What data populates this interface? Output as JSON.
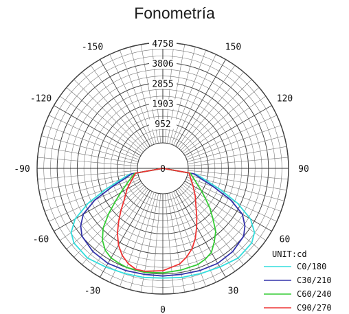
{
  "title": "Fonometría",
  "chart_data": {
    "type": "polar",
    "title": "Fonometría",
    "unit_label": "UNIT:cd",
    "radial_ticks": [
      952,
      1903,
      2855,
      3806,
      4758
    ],
    "center_label": "0",
    "radial_max": 4758,
    "angle_labels": [
      {
        "text": "-150",
        "angle": -150
      },
      {
        "text": "150",
        "angle": 150
      },
      {
        "text": "-120",
        "angle": -120
      },
      {
        "text": "120",
        "angle": 120
      },
      {
        "text": "-90",
        "angle": -90
      },
      {
        "text": "90",
        "angle": 90
      },
      {
        "text": "-60",
        "angle": -60
      },
      {
        "text": "60",
        "angle": 60
      },
      {
        "text": "-30",
        "angle": -30
      },
      {
        "text": "30",
        "angle": 30
      },
      {
        "text": "0",
        "angle": 0
      }
    ],
    "grid": true,
    "legend_position": "bottom-right",
    "series": [
      {
        "name": "C0/180",
        "color": "#33dddd",
        "points": [
          [
            -90,
            0
          ],
          [
            -80,
            400
          ],
          [
            -75,
            850
          ],
          [
            -70,
            1650
          ],
          [
            -65,
            2700
          ],
          [
            -60,
            3600
          ],
          [
            -55,
            4100
          ],
          [
            -50,
            4300
          ],
          [
            -40,
            4350
          ],
          [
            -30,
            4200
          ],
          [
            -20,
            4100
          ],
          [
            -10,
            4050
          ],
          [
            0,
            4000
          ],
          [
            10,
            4050
          ],
          [
            20,
            4100
          ],
          [
            30,
            4200
          ],
          [
            40,
            4350
          ],
          [
            50,
            4300
          ],
          [
            55,
            4100
          ],
          [
            60,
            3600
          ],
          [
            65,
            2700
          ],
          [
            70,
            1650
          ],
          [
            75,
            850
          ],
          [
            80,
            400
          ],
          [
            90,
            0
          ]
        ]
      },
      {
        "name": "C30/210",
        "color": "#3333aa",
        "points": [
          [
            -90,
            0
          ],
          [
            -80,
            300
          ],
          [
            -75,
            650
          ],
          [
            -70,
            1350
          ],
          [
            -65,
            2350
          ],
          [
            -60,
            3150
          ],
          [
            -55,
            3550
          ],
          [
            -50,
            3800
          ],
          [
            -40,
            3950
          ],
          [
            -30,
            4000
          ],
          [
            -20,
            3950
          ],
          [
            -10,
            3900
          ],
          [
            0,
            3900
          ],
          [
            10,
            3900
          ],
          [
            20,
            3950
          ],
          [
            30,
            4000
          ],
          [
            40,
            3950
          ],
          [
            50,
            3800
          ],
          [
            55,
            3550
          ],
          [
            60,
            3150
          ],
          [
            65,
            2350
          ],
          [
            70,
            1350
          ],
          [
            75,
            650
          ],
          [
            80,
            300
          ],
          [
            90,
            0
          ]
        ]
      },
      {
        "name": "C60/240",
        "color": "#33cc33",
        "points": [
          [
            -90,
            0
          ],
          [
            -80,
            150
          ],
          [
            -70,
            500
          ],
          [
            -60,
            1100
          ],
          [
            -55,
            1550
          ],
          [
            -50,
            2150
          ],
          [
            -45,
            2800
          ],
          [
            -40,
            3250
          ],
          [
            -35,
            3550
          ],
          [
            -30,
            3700
          ],
          [
            -25,
            3750
          ],
          [
            -20,
            3800
          ],
          [
            -10,
            3800
          ],
          [
            0,
            3750
          ],
          [
            10,
            3700
          ],
          [
            20,
            3650
          ],
          [
            25,
            3550
          ],
          [
            30,
            3400
          ],
          [
            35,
            3050
          ],
          [
            40,
            2700
          ],
          [
            45,
            2150
          ],
          [
            50,
            1700
          ],
          [
            55,
            1250
          ],
          [
            60,
            900
          ],
          [
            70,
            400
          ],
          [
            80,
            120
          ],
          [
            90,
            0
          ]
        ]
      },
      {
        "name": "C90/270",
        "color": "#ee3333",
        "points": [
          [
            -90,
            0
          ],
          [
            -80,
            100
          ],
          [
            -70,
            350
          ],
          [
            -60,
            750
          ],
          [
            -50,
            1200
          ],
          [
            -45,
            1600
          ],
          [
            -40,
            2050
          ],
          [
            -35,
            2550
          ],
          [
            -30,
            3000
          ],
          [
            -25,
            3350
          ],
          [
            -20,
            3600
          ],
          [
            -15,
            3750
          ],
          [
            -10,
            3750
          ],
          [
            0,
            3650
          ],
          [
            10,
            3400
          ],
          [
            15,
            3150
          ],
          [
            20,
            2850
          ],
          [
            25,
            2450
          ],
          [
            30,
            2000
          ],
          [
            35,
            1600
          ],
          [
            40,
            1250
          ],
          [
            50,
            800
          ],
          [
            60,
            450
          ],
          [
            70,
            200
          ],
          [
            80,
            60
          ],
          [
            90,
            0
          ]
        ]
      }
    ]
  }
}
